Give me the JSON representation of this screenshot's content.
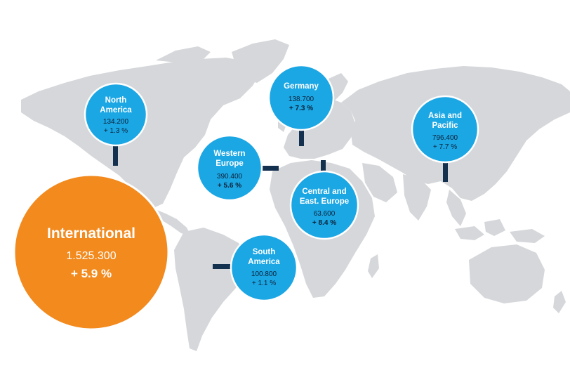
{
  "colors": {
    "land": "#d5d7da",
    "region_bubble": "#1ba6e4",
    "total_bubble": "#f28a1e",
    "connector": "#14304f",
    "region_text": "#0d2238"
  },
  "total": {
    "name": "International",
    "value": "1.525.300",
    "change": "+ 5.9 %"
  },
  "regions": {
    "north_america": {
      "name_lines": [
        "North",
        "America"
      ],
      "value": "134.200",
      "change": "+ 1.3 %"
    },
    "germany": {
      "name_lines": [
        "Germany"
      ],
      "value": "138.700",
      "change": "+ 7.3 %"
    },
    "asia_pacific": {
      "name_lines": [
        "Asia and",
        "Pacific"
      ],
      "value": "796.400",
      "change": "+ 7.7 %"
    },
    "western_europe": {
      "name_lines": [
        "Western",
        "Europe"
      ],
      "value": "390.400",
      "change": "+ 5.6 %"
    },
    "central_east_europe": {
      "name_lines": [
        "Central and",
        "East. Europe"
      ],
      "value": "63.600",
      "change": "+ 8.4 %"
    },
    "south_america": {
      "name_lines": [
        "South",
        "America"
      ],
      "value": "100.800",
      "change": "+ 1.1 %"
    }
  }
}
